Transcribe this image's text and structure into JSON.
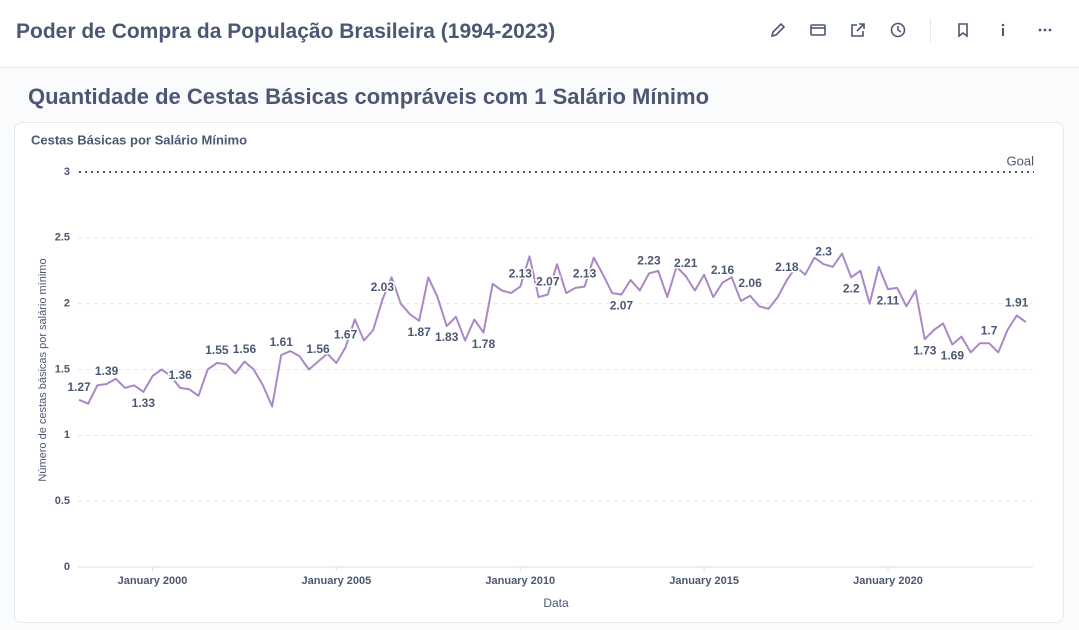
{
  "header": {
    "title": "Poder de Compra da População Brasileira (1994-2023)"
  },
  "section_title": "Quantidade de Cestas Básicas compráveis com 1 Salário Mínimo",
  "chart_data": {
    "type": "line",
    "title": "Cestas Básicas por Salário Mínimo",
    "x_label": "Data",
    "y_label": "Número de cestas básicas por salário mínimo",
    "color": "#a989c5",
    "grid": true,
    "goal": {
      "value": 3,
      "label": "Goal"
    },
    "xlim": [
      "1998-01",
      "2023-12"
    ],
    "xticks": [
      {
        "value": "2000-01",
        "label": "January 2000"
      },
      {
        "value": "2005-01",
        "label": "January 2005"
      },
      {
        "value": "2010-01",
        "label": "January 2010"
      },
      {
        "value": "2015-01",
        "label": "January 2015"
      },
      {
        "value": "2020-01",
        "label": "January 2020"
      }
    ],
    "ylim": [
      0,
      3
    ],
    "yticks": [
      0,
      0.5,
      1,
      1.5,
      2,
      2.5,
      3
    ],
    "x": [
      "1998-01",
      "1998-04",
      "1998-07",
      "1998-10",
      "1999-01",
      "1999-04",
      "1999-07",
      "1999-10",
      "2000-01",
      "2000-04",
      "2000-07",
      "2000-10",
      "2001-01",
      "2001-04",
      "2001-07",
      "2001-10",
      "2002-01",
      "2002-04",
      "2002-07",
      "2002-10",
      "2003-01",
      "2003-04",
      "2003-07",
      "2003-10",
      "2004-01",
      "2004-04",
      "2004-07",
      "2004-10",
      "2005-01",
      "2005-04",
      "2005-07",
      "2005-10",
      "2006-01",
      "2006-04",
      "2006-07",
      "2006-10",
      "2007-01",
      "2007-04",
      "2007-07",
      "2007-10",
      "2008-01",
      "2008-04",
      "2008-07",
      "2008-10",
      "2009-01",
      "2009-04",
      "2009-07",
      "2009-10",
      "2010-01",
      "2010-04",
      "2010-07",
      "2010-10",
      "2011-01",
      "2011-04",
      "2011-07",
      "2011-10",
      "2012-01",
      "2012-04",
      "2012-07",
      "2012-10",
      "2013-01",
      "2013-04",
      "2013-07",
      "2013-10",
      "2014-01",
      "2014-04",
      "2014-07",
      "2014-10",
      "2015-01",
      "2015-04",
      "2015-07",
      "2015-10",
      "2016-01",
      "2016-04",
      "2016-07",
      "2016-10",
      "2017-01",
      "2017-04",
      "2017-07",
      "2017-10",
      "2018-01",
      "2018-04",
      "2018-07",
      "2018-10",
      "2019-01",
      "2019-04",
      "2019-07",
      "2019-10",
      "2020-01",
      "2020-04",
      "2020-07",
      "2020-10",
      "2021-01",
      "2021-04",
      "2021-07",
      "2021-10",
      "2022-01",
      "2022-04",
      "2022-07",
      "2022-10",
      "2023-01",
      "2023-04",
      "2023-07",
      "2023-10"
    ],
    "values": [
      1.27,
      1.24,
      1.38,
      1.39,
      1.43,
      1.36,
      1.38,
      1.33,
      1.45,
      1.5,
      1.45,
      1.36,
      1.35,
      1.3,
      1.5,
      1.55,
      1.54,
      1.47,
      1.56,
      1.5,
      1.38,
      1.22,
      1.61,
      1.64,
      1.6,
      1.5,
      1.56,
      1.62,
      1.55,
      1.67,
      1.88,
      1.72,
      1.8,
      2.03,
      2.2,
      2.0,
      1.92,
      1.87,
      2.2,
      2.05,
      1.83,
      1.9,
      1.72,
      1.88,
      1.78,
      2.15,
      2.1,
      2.08,
      2.13,
      2.36,
      2.05,
      2.07,
      2.3,
      2.08,
      2.12,
      2.13,
      2.35,
      2.22,
      2.08,
      2.07,
      2.18,
      2.1,
      2.23,
      2.25,
      2.05,
      2.28,
      2.21,
      2.1,
      2.22,
      2.05,
      2.16,
      2.2,
      2.02,
      2.06,
      1.98,
      1.96,
      2.05,
      2.18,
      2.28,
      2.22,
      2.35,
      2.3,
      2.28,
      2.38,
      2.2,
      2.25,
      2.0,
      2.28,
      2.11,
      2.12,
      1.98,
      2.1,
      1.73,
      1.8,
      1.85,
      1.69,
      1.75,
      1.63,
      1.7,
      1.7,
      1.63,
      1.8,
      1.91,
      1.86
    ],
    "value_labels": [
      "1.27",
      null,
      null,
      "1.39",
      null,
      null,
      null,
      "1.33",
      null,
      null,
      null,
      "1.36",
      null,
      null,
      null,
      "1.55",
      null,
      null,
      "1.56",
      null,
      null,
      null,
      "1.61",
      null,
      null,
      null,
      "1.56",
      null,
      null,
      "1.67",
      null,
      null,
      null,
      "2.03",
      null,
      null,
      null,
      "1.87",
      null,
      null,
      "1.83",
      null,
      null,
      null,
      "1.78",
      null,
      null,
      null,
      "2.13",
      null,
      null,
      "2.07",
      null,
      null,
      null,
      "2.13",
      null,
      null,
      null,
      "2.07",
      null,
      null,
      "2.23",
      null,
      null,
      null,
      "2.21",
      null,
      null,
      null,
      "2.16",
      null,
      null,
      "2.06",
      null,
      null,
      null,
      "2.18",
      null,
      null,
      null,
      "2.3",
      null,
      null,
      "2.2",
      null,
      null,
      null,
      "2.11",
      null,
      null,
      null,
      "1.73",
      null,
      null,
      "1.69",
      null,
      null,
      null,
      "1.7",
      null,
      null,
      "1.91",
      null
    ]
  }
}
